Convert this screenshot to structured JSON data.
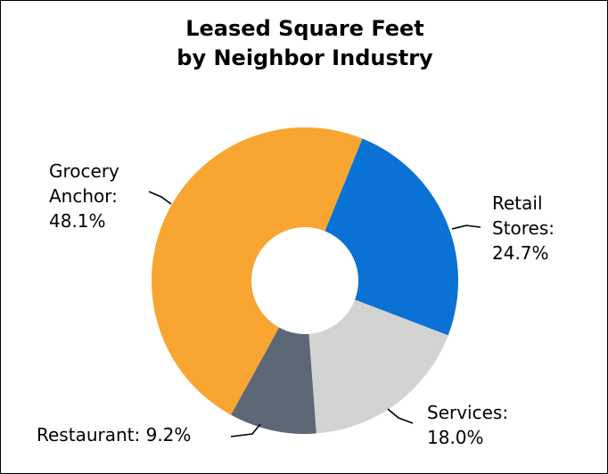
{
  "chart_data": {
    "type": "pie",
    "donut": true,
    "title": [
      "Leased Square Feet",
      "by Neighbor Industry"
    ],
    "slices": [
      {
        "name": "Retail Stores",
        "value": 24.7,
        "color": "#0a72d4",
        "label_lines": [
          "Retail",
          "Stores:",
          "24.7%"
        ]
      },
      {
        "name": "Services",
        "value": 18.0,
        "color": "#d3d3d3",
        "label_lines": [
          "Services:",
          "18.0%"
        ]
      },
      {
        "name": "Restaurant",
        "value": 9.2,
        "color": "#5d6876",
        "label_lines": [
          "Restaurant: 9.2%"
        ]
      },
      {
        "name": "Grocery Anchor",
        "value": 48.1,
        "color": "#f8a532",
        "label_lines": [
          "Grocery",
          "Anchor:",
          "48.1%"
        ]
      }
    ],
    "start_angle_deg": 22
  }
}
